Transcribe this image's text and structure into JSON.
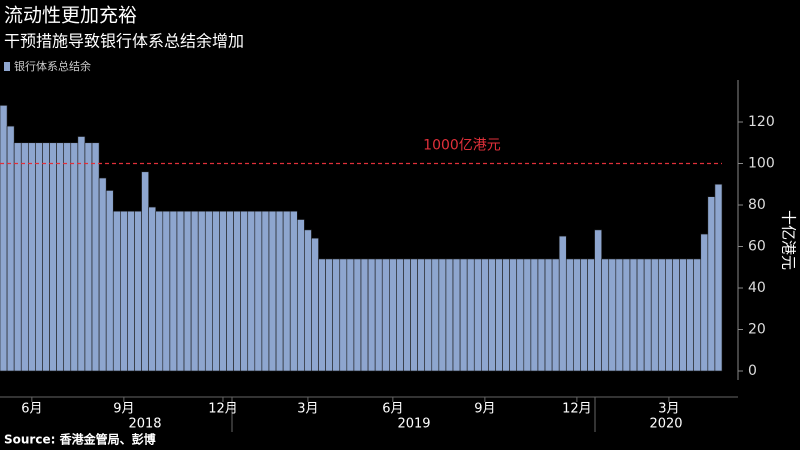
{
  "chart_data": {
    "type": "bar",
    "title": "流动性更加充裕",
    "subtitle": "干预措施导致银行体系总结余增加",
    "source": "Source: 香港金管局、彭博",
    "y_label": "十亿港元",
    "series": [
      {
        "name": "银行体系总结余",
        "color": "#8ea6cf",
        "values": [
          128,
          118,
          110,
          110,
          110,
          110,
          110,
          110,
          110,
          110,
          110,
          113,
          110,
          110,
          93,
          87,
          77,
          77,
          77,
          77,
          96,
          79,
          77,
          77,
          77,
          77,
          77,
          77,
          77,
          77,
          77,
          77,
          77,
          77,
          77,
          77,
          77,
          77,
          77,
          77,
          77,
          77,
          73,
          68,
          64,
          54,
          54,
          54,
          54,
          54,
          54,
          54,
          54,
          54,
          54,
          54,
          54,
          54,
          54,
          54,
          54,
          54,
          54,
          54,
          54,
          54,
          54,
          54,
          54,
          54,
          54,
          54,
          54,
          54,
          54,
          54,
          54,
          54,
          54,
          65,
          54,
          54,
          54,
          54,
          68,
          54,
          54,
          54,
          54,
          54,
          54,
          54,
          54,
          54,
          54,
          54,
          54,
          54,
          54,
          66,
          84,
          90
        ]
      }
    ],
    "categories": [
      null,
      null,
      null,
      null,
      "6月",
      null,
      null,
      null,
      null,
      null,
      null,
      null,
      null,
      null,
      null,
      null,
      null,
      "9月",
      null,
      null,
      null,
      null,
      null,
      null,
      null,
      null,
      null,
      null,
      null,
      null,
      null,
      "12月",
      null,
      null,
      null,
      null,
      null,
      null,
      null,
      null,
      null,
      null,
      null,
      "3月",
      null,
      null,
      null,
      null,
      null,
      null,
      null,
      null,
      null,
      null,
      null,
      "6月",
      null,
      null,
      null,
      null,
      null,
      null,
      null,
      null,
      null,
      null,
      null,
      null,
      "9月",
      null,
      null,
      null,
      null,
      null,
      null,
      null,
      null,
      null,
      null,
      null,
      null,
      "12月",
      null,
      null,
      null,
      null,
      null,
      null,
      null,
      null,
      null,
      null,
      null,
      null,
      "3月",
      null,
      null,
      null,
      null,
      null,
      null,
      null
    ],
    "x_groups": [
      "2018",
      "2019",
      "2020"
    ],
    "ylim": [
      0,
      140
    ],
    "yticks": [
      0,
      20,
      40,
      60,
      80,
      100,
      120
    ],
    "ref_line": {
      "value": 100,
      "label": "1000亿港元",
      "color": "#e0303a"
    }
  }
}
